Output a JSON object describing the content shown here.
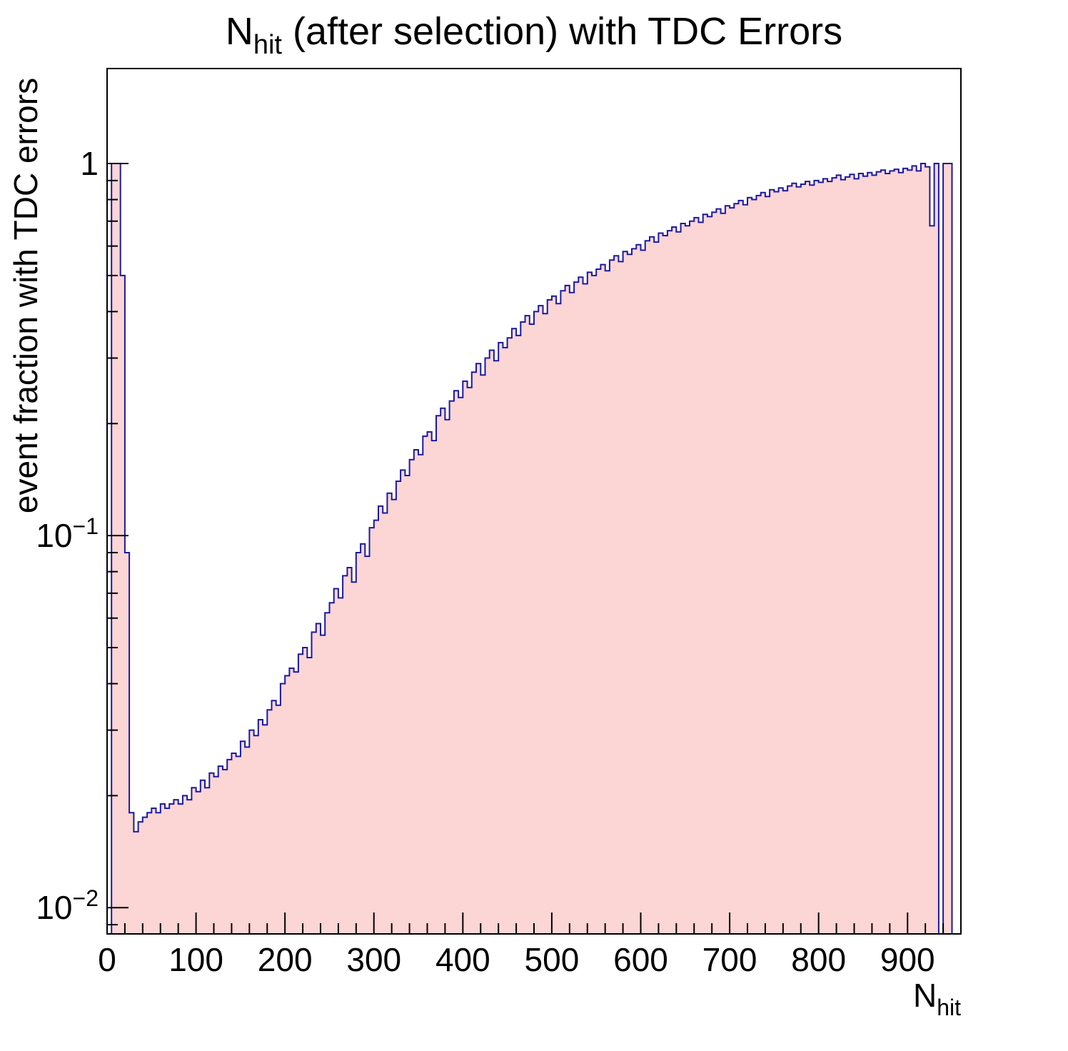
{
  "title": {
    "prefix": "N",
    "sub": "hit",
    "rest": " (after selection) with TDC Errors"
  },
  "axes": {
    "x": {
      "label_prefix": "N",
      "label_sub": "hit",
      "major_ticks": [
        0,
        100,
        200,
        300,
        400,
        500,
        600,
        700,
        800,
        900
      ],
      "minor_step": 20
    },
    "y": {
      "label": "event fraction with TDC errors",
      "scale": "log",
      "tick_labels": {
        "one": "1",
        "base": "10",
        "exp_minus1": "−1",
        "exp_minus2": "−2"
      }
    }
  },
  "style": {
    "fill_color": "#fcd5d5",
    "line_color": "#1a1aa0",
    "frame_color": "#000000",
    "background": "#ffffff"
  },
  "chart_data": {
    "type": "bar",
    "title": "N_hit (after selection) with TDC Errors",
    "xlabel": "N_hit",
    "ylabel": "event fraction with TDC errors",
    "yscale": "log",
    "xlim": [
      0,
      960
    ],
    "ylim": [
      0.0085,
      1.8
    ],
    "x_start": 0,
    "bin_width": 5,
    "values": [
      0,
      1,
      1,
      0.5,
      0.09,
      0.018,
      0.016,
      0.017,
      0.0175,
      0.018,
      0.0185,
      0.018,
      0.019,
      0.0185,
      0.019,
      0.0195,
      0.019,
      0.02,
      0.0195,
      0.021,
      0.0205,
      0.022,
      0.021,
      0.023,
      0.0225,
      0.024,
      0.0235,
      0.025,
      0.026,
      0.0255,
      0.028,
      0.027,
      0.03,
      0.029,
      0.032,
      0.031,
      0.034,
      0.036,
      0.035,
      0.04,
      0.042,
      0.044,
      0.043,
      0.048,
      0.05,
      0.047,
      0.055,
      0.058,
      0.054,
      0.062,
      0.066,
      0.072,
      0.068,
      0.078,
      0.082,
      0.075,
      0.09,
      0.095,
      0.088,
      0.105,
      0.11,
      0.12,
      0.115,
      0.13,
      0.125,
      0.14,
      0.15,
      0.145,
      0.16,
      0.17,
      0.165,
      0.185,
      0.19,
      0.18,
      0.21,
      0.22,
      0.205,
      0.23,
      0.245,
      0.235,
      0.26,
      0.25,
      0.275,
      0.29,
      0.27,
      0.3,
      0.315,
      0.295,
      0.33,
      0.32,
      0.34,
      0.36,
      0.345,
      0.375,
      0.39,
      0.37,
      0.4,
      0.415,
      0.395,
      0.43,
      0.44,
      0.42,
      0.455,
      0.47,
      0.45,
      0.48,
      0.495,
      0.475,
      0.51,
      0.5,
      0.52,
      0.535,
      0.515,
      0.55,
      0.565,
      0.545,
      0.58,
      0.57,
      0.59,
      0.605,
      0.585,
      0.62,
      0.635,
      0.615,
      0.65,
      0.64,
      0.66,
      0.675,
      0.655,
      0.69,
      0.68,
      0.7,
      0.715,
      0.695,
      0.73,
      0.72,
      0.74,
      0.755,
      0.735,
      0.77,
      0.76,
      0.78,
      0.795,
      0.775,
      0.81,
      0.8,
      0.82,
      0.835,
      0.815,
      0.85,
      0.84,
      0.86,
      0.845,
      0.87,
      0.885,
      0.865,
      0.88,
      0.895,
      0.875,
      0.9,
      0.89,
      0.91,
      0.895,
      0.915,
      0.93,
      0.905,
      0.92,
      0.935,
      0.91,
      0.94,
      0.925,
      0.945,
      0.93,
      0.95,
      0.96,
      0.94,
      0.955,
      0.965,
      0.945,
      0.97,
      0.96,
      0.985,
      0.955,
      1.0,
      0.98,
      0.68,
      1.0,
      0.0,
      1.0,
      1.0
    ]
  }
}
